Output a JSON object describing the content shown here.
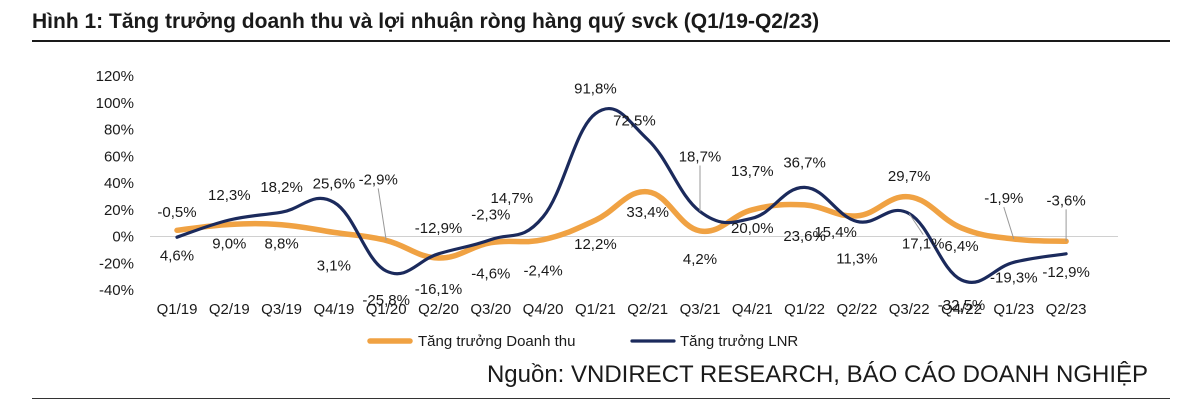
{
  "title": "Hình 1: Tăng trưởng doanh thu và lợi nhuận ròng hàng quý svck (Q1/19-Q2/23)",
  "source": "Nguồn: VNDIRECT RESEARCH, BÁO CÁO DOANH NGHIỆP",
  "colors": {
    "revenue": "#F0A243",
    "profit": "#1B2A5C",
    "text": "#1a1a1a",
    "leader": "#999999"
  },
  "chart_data": {
    "type": "line",
    "categories": [
      "Q1/19",
      "Q2/19",
      "Q3/19",
      "Q4/19",
      "Q1/20",
      "Q2/20",
      "Q3/20",
      "Q4/20",
      "Q1/21",
      "Q2/21",
      "Q3/21",
      "Q4/21",
      "Q1/22",
      "Q2/22",
      "Q3/22",
      "Q4/22",
      "Q1/23",
      "Q2/23"
    ],
    "y_ticks": [
      "120%",
      "100%",
      "80%",
      "60%",
      "40%",
      "20%",
      "0%",
      "-20%",
      "-40%"
    ],
    "ylim": [
      -40,
      120
    ],
    "series": [
      {
        "name": "Tăng trưởng Doanh thu",
        "key": "revenue",
        "values": [
          4.6,
          9.0,
          8.8,
          3.1,
          -2.9,
          -16.1,
          -4.6,
          -2.4,
          12.2,
          33.4,
          4.2,
          20.0,
          23.6,
          15.4,
          29.7,
          6.4,
          -1.9,
          -3.6
        ],
        "labels": [
          "4,6%",
          "9,0%",
          "8,8%",
          "3,1%",
          "-2,9%",
          "-16,1%",
          "-4,6%",
          "-2,4%",
          "12,2%",
          "33,4%",
          "4,2%",
          "20,0%",
          "23,6%",
          "15,4%",
          "29,7%",
          "6,4%",
          "-1,9%",
          "-3,6%"
        ]
      },
      {
        "name": "Tăng trưởng LNR",
        "key": "profit",
        "values": [
          -0.5,
          12.3,
          18.2,
          25.6,
          -25.8,
          -12.9,
          -2.3,
          14.7,
          91.8,
          72.5,
          18.7,
          13.7,
          36.7,
          11.3,
          17.1,
          -32.5,
          -19.3,
          -12.9
        ],
        "labels": [
          "-0,5%",
          "12,3%",
          "18,2%",
          "25,6%",
          "-25,8%",
          "-12,9%",
          "-2,3%",
          "14,7%",
          "91,8%",
          "72,5%",
          "18,7%",
          "13,7%",
          "36,7%",
          "11,3%",
          "17,1%",
          "-32,5%",
          "-19,3%",
          "-12,9%"
        ]
      }
    ],
    "legend": "bottom",
    "grid": false
  }
}
